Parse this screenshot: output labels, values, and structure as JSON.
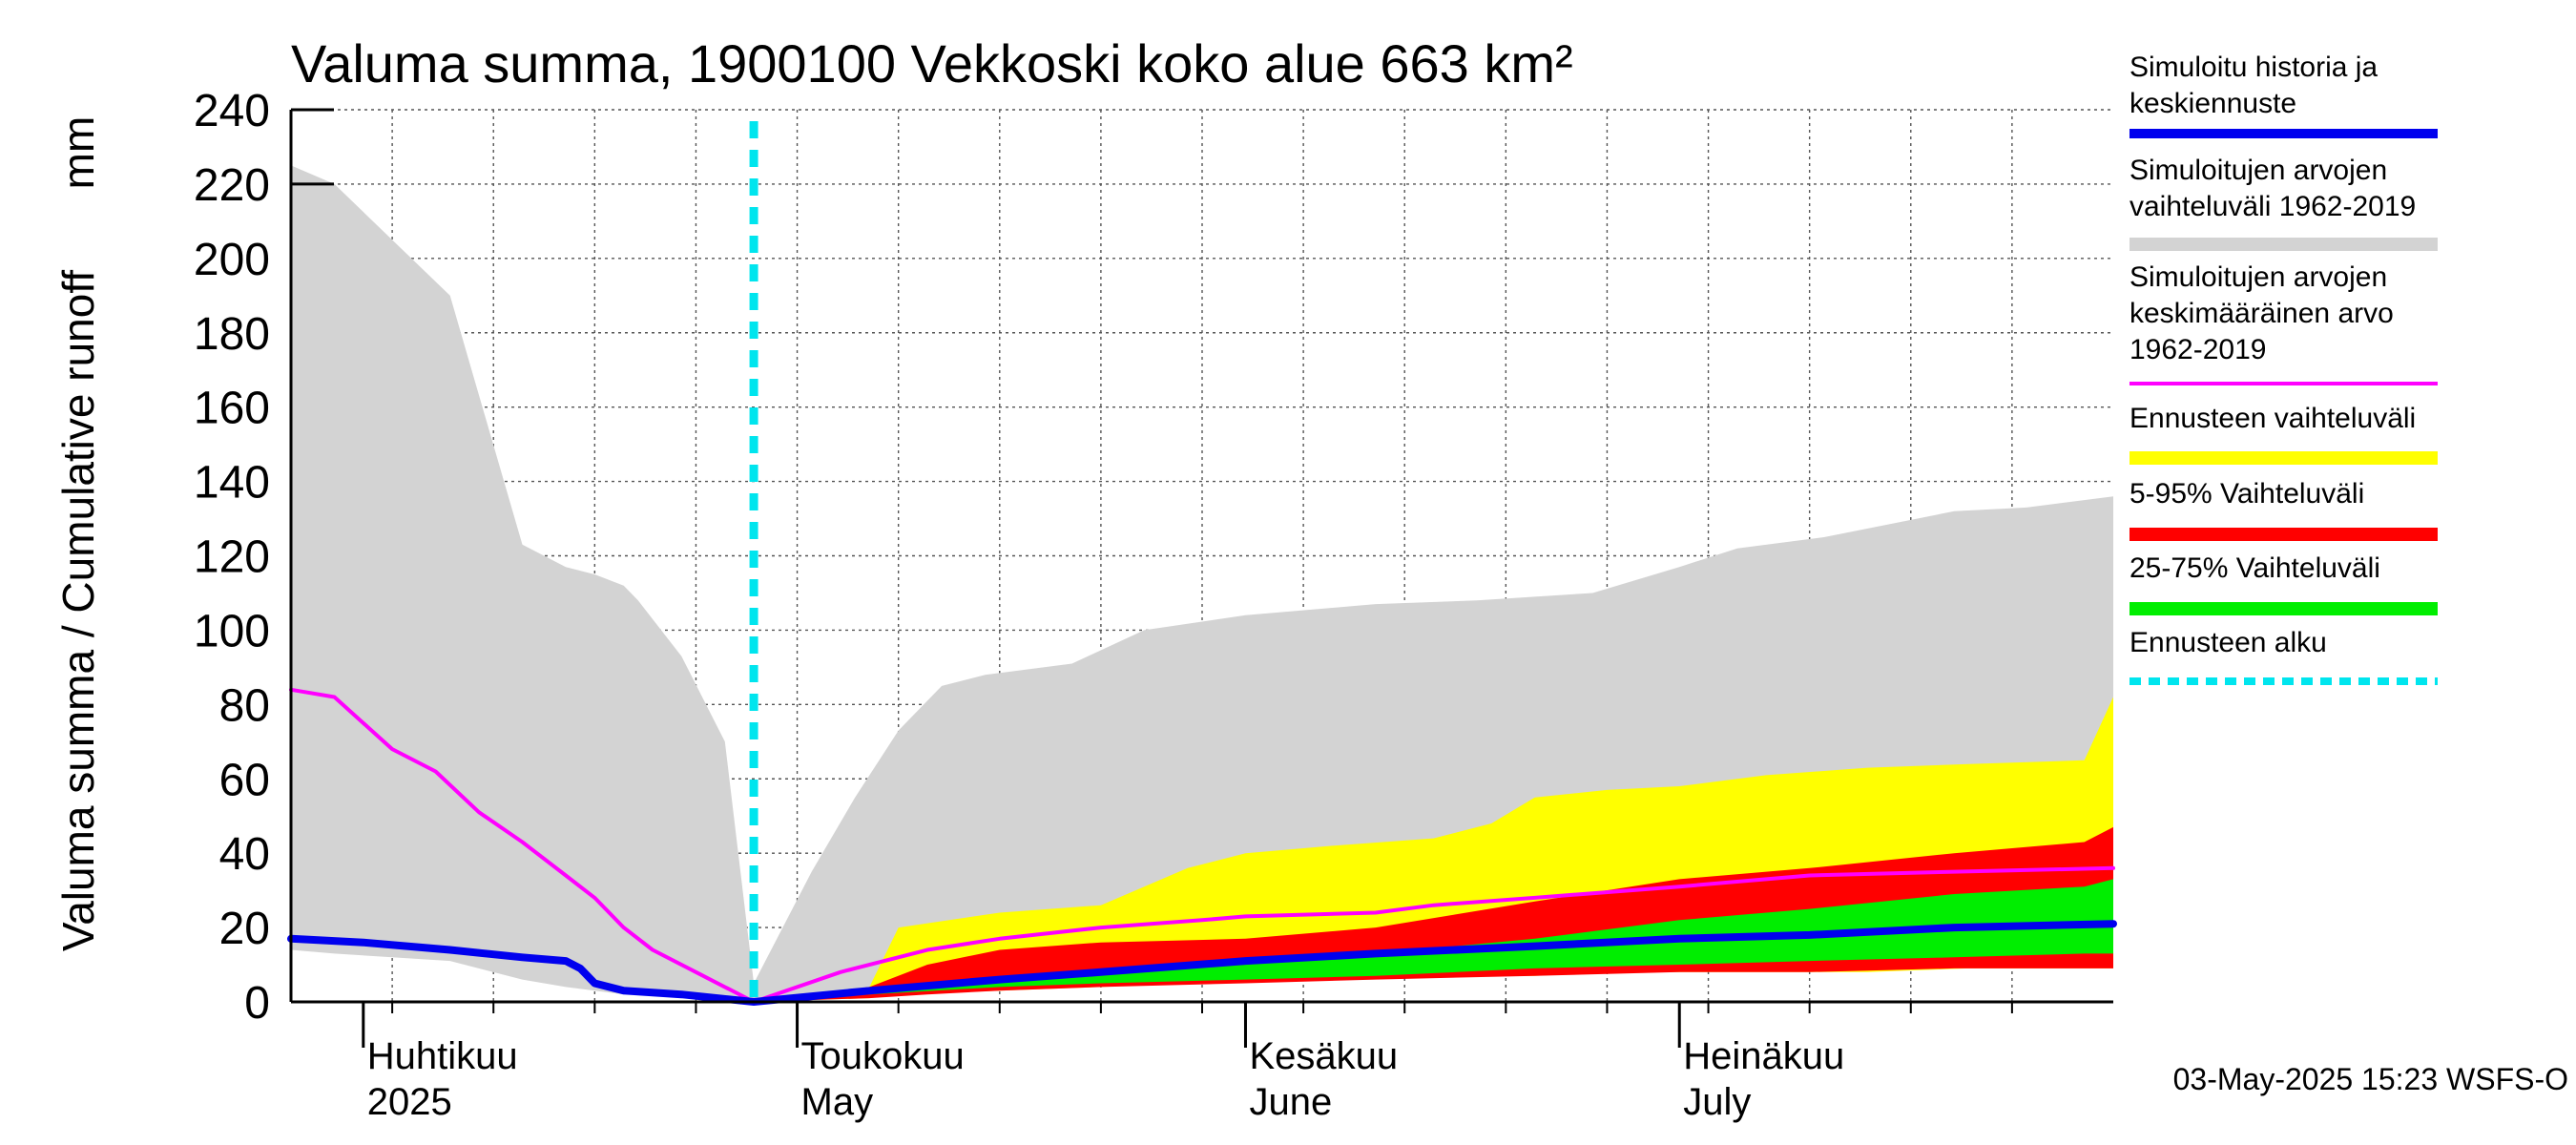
{
  "chart_data": {
    "type": "area",
    "title": "Valuma summa, 1900100 Vekkoski koko alue 663 km²",
    "ylabel": "Valuma summa / Cumulative runoff",
    "yunit": "mm",
    "ylim": [
      0,
      240
    ],
    "yticks": [
      0,
      20,
      40,
      60,
      80,
      100,
      120,
      140,
      160,
      180,
      200,
      220,
      240
    ],
    "xlim": [
      "2025-03-27",
      "2025-07-31"
    ],
    "x_labels": [
      {
        "date": "2025-04-01",
        "line1": "Huhtikuu",
        "line2": "2025"
      },
      {
        "date": "2025-05-01",
        "line1": "Toukokuu",
        "line2": "May"
      },
      {
        "date": "2025-06-01",
        "line1": "Kesäkuu",
        "line2": "June"
      },
      {
        "date": "2025-07-01",
        "line1": "Heinäkuu",
        "line2": "July"
      }
    ],
    "grid": true,
    "legend_position": "right",
    "forecast_start": "2025-04-28",
    "colors": {
      "history": "#0000ee",
      "range_1962_2019": "#d3d3d3",
      "mean_1962_2019": "#ff00ff",
      "forecast_range": "#ffff00",
      "p5_95": "#ff0000",
      "p25_75": "#00ee00",
      "forecast_start": "#00e5ee"
    },
    "series": [
      {
        "name": "Simuloitujen arvojen vaihteluväli 1962-2019",
        "kind": "band",
        "x": [
          "2025-03-27",
          "2025-03-30",
          "2025-04-03",
          "2025-04-07",
          "2025-04-12",
          "2025-04-15",
          "2025-04-17",
          "2025-04-19",
          "2025-04-20",
          "2025-04-23",
          "2025-04-26",
          "2025-04-28",
          "2025-05-02",
          "2025-05-05",
          "2025-05-08",
          "2025-05-11",
          "2025-05-14",
          "2025-05-20",
          "2025-05-25",
          "2025-06-01",
          "2025-06-10",
          "2025-06-17",
          "2025-06-21",
          "2025-06-25",
          "2025-07-01",
          "2025-07-05",
          "2025-07-11",
          "2025-07-20",
          "2025-07-25",
          "2025-07-31"
        ],
        "upper": [
          225,
          220,
          205,
          190,
          123,
          117,
          115,
          112,
          108,
          93,
          70,
          5,
          35,
          55,
          73,
          85,
          88,
          91,
          100,
          104,
          107,
          108,
          109,
          110,
          117,
          122,
          125,
          132,
          133,
          136
        ],
        "lower": [
          14,
          13,
          12,
          11,
          6,
          4,
          3,
          2,
          2,
          1,
          1,
          0,
          1,
          2,
          3,
          4,
          5,
          6,
          6,
          7,
          7,
          8,
          8,
          8,
          8,
          9,
          9,
          9,
          9,
          9
        ]
      },
      {
        "name": "Ennusteen vaihteluväli",
        "kind": "band",
        "x": [
          "2025-04-28",
          "2025-05-06",
          "2025-05-08",
          "2025-05-15",
          "2025-05-22",
          "2025-05-28",
          "2025-06-01",
          "2025-06-07",
          "2025-06-14",
          "2025-06-18",
          "2025-06-21",
          "2025-06-26",
          "2025-07-01",
          "2025-07-07",
          "2025-07-14",
          "2025-07-21",
          "2025-07-29",
          "2025-07-31"
        ],
        "upper": [
          0,
          4,
          20,
          24,
          26,
          36,
          40,
          42,
          44,
          48,
          55,
          57,
          58,
          61,
          63,
          64,
          65,
          82
        ],
        "lower": [
          0,
          1,
          2,
          3,
          4,
          5,
          6,
          6,
          7,
          7,
          7,
          8,
          8,
          8,
          8,
          9,
          9,
          9
        ]
      },
      {
        "name": "5-95% Vaihteluväli",
        "kind": "band",
        "x": [
          "2025-04-28",
          "2025-05-06",
          "2025-05-10",
          "2025-05-15",
          "2025-05-22",
          "2025-06-01",
          "2025-06-10",
          "2025-06-21",
          "2025-07-01",
          "2025-07-10",
          "2025-07-20",
          "2025-07-29",
          "2025-07-31"
        ],
        "upper": [
          0,
          4,
          10,
          14,
          16,
          17,
          20,
          27,
          33,
          36,
          40,
          43,
          47
        ],
        "lower": [
          0,
          1,
          2,
          3,
          4,
          5,
          6,
          7,
          8,
          8,
          9,
          9,
          9
        ]
      },
      {
        "name": "25-75% Vaihteluväli",
        "kind": "band",
        "x": [
          "2025-04-28",
          "2025-05-06",
          "2025-05-15",
          "2025-05-22",
          "2025-06-01",
          "2025-06-10",
          "2025-06-21",
          "2025-07-01",
          "2025-07-10",
          "2025-07-20",
          "2025-07-29",
          "2025-07-31"
        ],
        "upper": [
          0,
          3,
          6,
          8,
          10,
          13,
          17,
          22,
          25,
          29,
          31,
          33
        ],
        "lower": [
          0,
          2,
          4,
          5,
          6,
          7,
          9,
          10,
          11,
          12,
          13,
          13
        ]
      },
      {
        "name": "Simuloitujen arvojen keskimääräinen arvo 1962-2019",
        "kind": "line",
        "x": [
          "2025-03-27",
          "2025-03-30",
          "2025-04-03",
          "2025-04-06",
          "2025-04-09",
          "2025-04-12",
          "2025-04-15",
          "2025-04-17",
          "2025-04-19",
          "2025-04-21",
          "2025-04-24",
          "2025-04-28",
          "2025-05-04",
          "2025-05-10",
          "2025-05-15",
          "2025-05-22",
          "2025-05-29",
          "2025-06-01",
          "2025-06-10",
          "2025-06-14",
          "2025-06-21",
          "2025-07-01",
          "2025-07-10",
          "2025-07-20",
          "2025-07-31"
        ],
        "values": [
          84,
          82,
          68,
          62,
          51,
          43,
          34,
          28,
          20,
          14,
          8,
          0,
          8,
          14,
          17,
          20,
          22,
          23,
          24,
          26,
          28,
          31,
          34,
          35,
          36
        ]
      },
      {
        "name": "Simuloitu historia ja keskiennuste",
        "kind": "line",
        "x": [
          "2025-03-27",
          "2025-04-01",
          "2025-04-07",
          "2025-04-12",
          "2025-04-15",
          "2025-04-16",
          "2025-04-17",
          "2025-04-19",
          "2025-04-23",
          "2025-04-28",
          "2025-05-06",
          "2025-05-15",
          "2025-05-22",
          "2025-06-01",
          "2025-06-10",
          "2025-06-21",
          "2025-07-01",
          "2025-07-10",
          "2025-07-20",
          "2025-07-31"
        ],
        "values": [
          17,
          16,
          14,
          12,
          11,
          9,
          5,
          3,
          2,
          0,
          3,
          6,
          8,
          11,
          13,
          15,
          17,
          18,
          20,
          21
        ]
      }
    ]
  },
  "legend": {
    "items": [
      {
        "key": "history",
        "lines": [
          "Simuloitu historia ja",
          "keskiennuste"
        ],
        "color": "#0000ee",
        "style": "line"
      },
      {
        "key": "range",
        "lines": [
          "Simuloitujen arvojen",
          "vaihteluväli 1962-2019"
        ],
        "color": "#d3d3d3",
        "style": "thick"
      },
      {
        "key": "mean",
        "lines": [
          "Simuloitujen arvojen",
          "keskimääräinen arvo",
          "   1962-2019"
        ],
        "color": "#ff00ff",
        "style": "thin"
      },
      {
        "key": "forecast-range",
        "lines": [
          "Ennusteen vaihteluväli"
        ],
        "color": "#ffff00",
        "style": "thick"
      },
      {
        "key": "p5-95",
        "lines": [
          "5-95% Vaihteluväli"
        ],
        "color": "#ff0000",
        "style": "thick"
      },
      {
        "key": "p25-75",
        "lines": [
          "25-75% Vaihteluväli"
        ],
        "color": "#00ee00",
        "style": "thick"
      },
      {
        "key": "forecast-start",
        "lines": [
          "Ennusteen alku"
        ],
        "color": "#00e5ee",
        "style": "dashed"
      }
    ]
  },
  "footer": "03-May-2025 15:23 WSFS-O"
}
